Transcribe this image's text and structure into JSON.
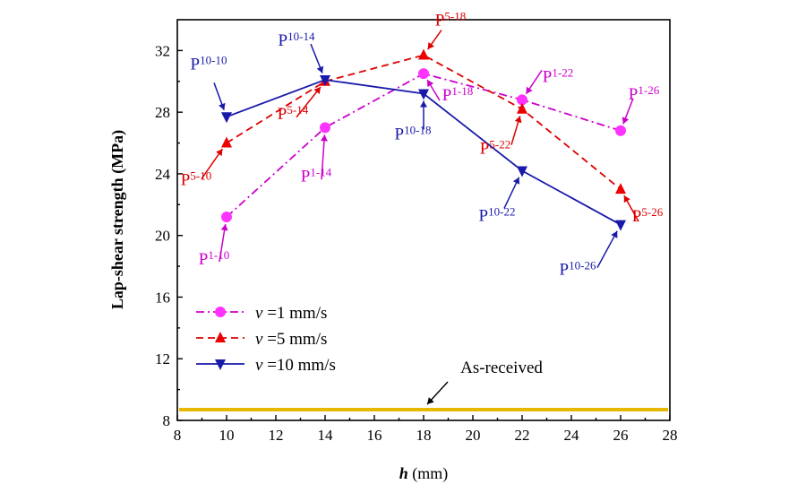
{
  "chart_data": {
    "type": "line",
    "xlabel_var": "h",
    "xlabel_unit": " (mm)",
    "ylabel": "Lap-shear strength (MPa)",
    "xlim": [
      8,
      28
    ],
    "ylim": [
      8,
      34
    ],
    "xticks": [
      "8",
      "10",
      "12",
      "14",
      "16",
      "18",
      "20",
      "22",
      "24",
      "26",
      "28"
    ],
    "yticks": [
      "8",
      "12",
      "16",
      "20",
      "24",
      "28",
      "32"
    ],
    "grid": false,
    "legend_position": "lower-left",
    "series": [
      {
        "name": "ν =1 mm/s",
        "legend_var": "ν",
        "legend_rest": " =1 mm/s",
        "color": "#cc00cc",
        "marker_color": "#ff33ff",
        "line_style": "dash-dot",
        "marker": "circle",
        "x": [
          10,
          14,
          18,
          22,
          26
        ],
        "y": [
          21.2,
          27.0,
          30.5,
          28.8,
          26.8
        ],
        "point_labels": [
          {
            "main": "P",
            "sub": "1-10"
          },
          {
            "main": "P",
            "sub": "1-14"
          },
          {
            "main": "P",
            "sub": "1-18"
          },
          {
            "main": "P",
            "sub": "1-22"
          },
          {
            "main": "P",
            "sub": "1-26"
          }
        ]
      },
      {
        "name": "ν =5 mm/s",
        "legend_var": "ν",
        "legend_rest": " =5 mm/s",
        "color": "#dd0000",
        "marker_color": "#ee0000",
        "line_style": "dashed",
        "marker": "triangle-up",
        "x": [
          10,
          14,
          18,
          22,
          26
        ],
        "y": [
          26.0,
          30.0,
          31.7,
          28.2,
          23.0
        ],
        "point_labels": [
          {
            "main": "P",
            "sub": "5-10"
          },
          {
            "main": "P",
            "sub": "5-14"
          },
          {
            "main": "P",
            "sub": "5-18"
          },
          {
            "main": "P",
            "sub": "5-22"
          },
          {
            "main": "P",
            "sub": "5-26"
          }
        ]
      },
      {
        "name": "ν =10 mm/s",
        "legend_var": "ν",
        "legend_rest": " =10 mm/s",
        "color": "#1a1aaa",
        "marker_color": "#1a1aaa",
        "line_style": "solid",
        "marker": "triangle-down",
        "x": [
          10,
          14,
          18,
          22,
          26
        ],
        "y": [
          27.7,
          30.1,
          29.2,
          24.2,
          20.7
        ],
        "point_labels": [
          {
            "main": "P",
            "sub": "10-10"
          },
          {
            "main": "P",
            "sub": "10-14"
          },
          {
            "main": "P",
            "sub": "10-18"
          },
          {
            "main": "P",
            "sub": "10-22"
          },
          {
            "main": "P",
            "sub": "10-26"
          }
        ]
      }
    ],
    "reference_line": {
      "label": "As-received",
      "y": 8.7,
      "color": "#e6b800"
    }
  }
}
